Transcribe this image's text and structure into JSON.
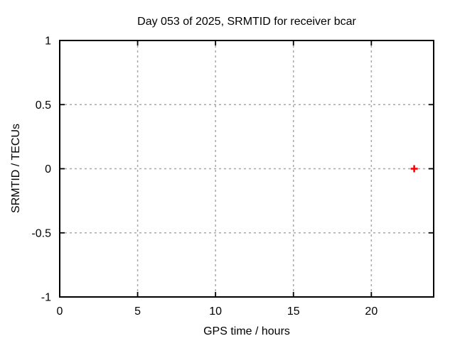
{
  "page": {
    "background": "#ffffff"
  },
  "chart_data": {
    "type": "scatter",
    "title": "Day 053 of 2025, SRMTID for receiver bcar",
    "xlabel": "GPS time / hours",
    "ylabel": "SRMTID / TECUs",
    "xlim": [
      0,
      24
    ],
    "ylim": [
      -1,
      1
    ],
    "xticks": [
      0,
      5,
      10,
      15,
      20
    ],
    "yticks": [
      -1,
      -0.5,
      0,
      0.5,
      1
    ],
    "grid": true,
    "grid_style": "dashed",
    "legend": "none",
    "border_color": "#000000",
    "grid_color": "#a8a8a8",
    "text_color": "#000000",
    "series": [
      {
        "name": "SRMTID",
        "marker": "plus",
        "color": "#ff0000",
        "points": [
          {
            "x": 22.75,
            "y": 0.0
          }
        ]
      }
    ]
  }
}
